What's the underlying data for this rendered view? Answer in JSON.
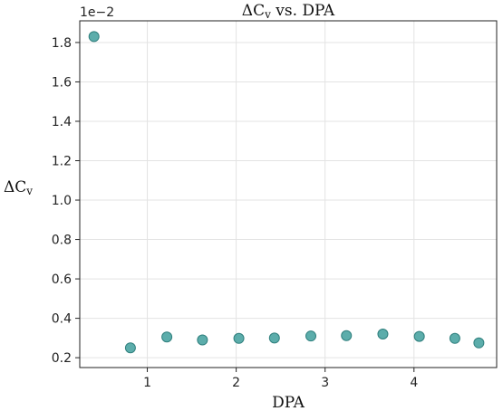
{
  "chart_data": {
    "type": "scatter",
    "title_main": "ΔC",
    "title_sub": "v",
    "title_rest": " vs. DPA",
    "xlabel": "DPA",
    "ylabel_main": "ΔC",
    "ylabel_sub": "v",
    "y_multiplier": "1e−2",
    "xlim": [
      0.24,
      4.93
    ],
    "ylim": [
      0.15,
      1.91
    ],
    "x_ticks": [
      1,
      2,
      3,
      4
    ],
    "y_ticks": [
      0.2,
      0.4,
      0.6,
      0.8,
      1.0,
      1.2,
      1.4,
      1.6,
      1.8
    ],
    "x_tick_labels": [
      "1",
      "2",
      "3",
      "4"
    ],
    "y_tick_labels": [
      "0.2",
      "0.4",
      "0.6",
      "0.8",
      "1.0",
      "1.2",
      "1.4",
      "1.6",
      "1.8"
    ],
    "grid": true,
    "marker_color": "#3f9f9c",
    "marker_edge_color": "#2f7f7d",
    "points": [
      {
        "x": 0.4,
        "y": 1.83
      },
      {
        "x": 0.81,
        "y": 0.25
      },
      {
        "x": 1.22,
        "y": 0.305
      },
      {
        "x": 1.62,
        "y": 0.29
      },
      {
        "x": 2.03,
        "y": 0.298
      },
      {
        "x": 2.43,
        "y": 0.3
      },
      {
        "x": 2.84,
        "y": 0.31
      },
      {
        "x": 3.24,
        "y": 0.312
      },
      {
        "x": 3.65,
        "y": 0.32
      },
      {
        "x": 4.06,
        "y": 0.308
      },
      {
        "x": 4.46,
        "y": 0.298
      },
      {
        "x": 4.73,
        "y": 0.275
      }
    ]
  }
}
